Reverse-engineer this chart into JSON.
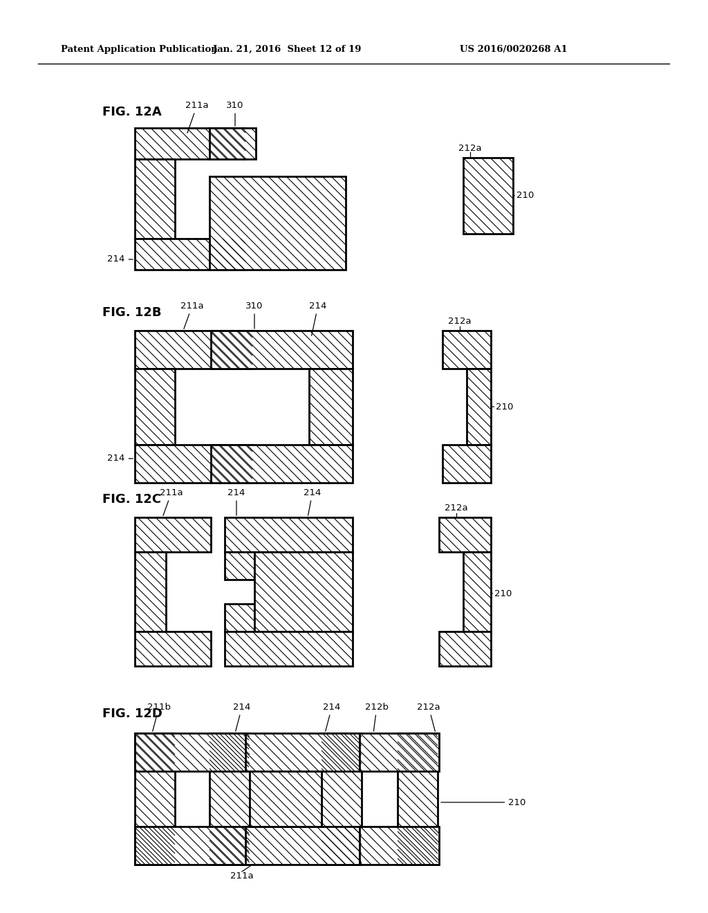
{
  "header_left": "Patent Application Publication",
  "header_mid": "Jan. 21, 2016  Sheet 12 of 19",
  "header_right": "US 2016/0020268 A1",
  "bg": "#ffffff"
}
